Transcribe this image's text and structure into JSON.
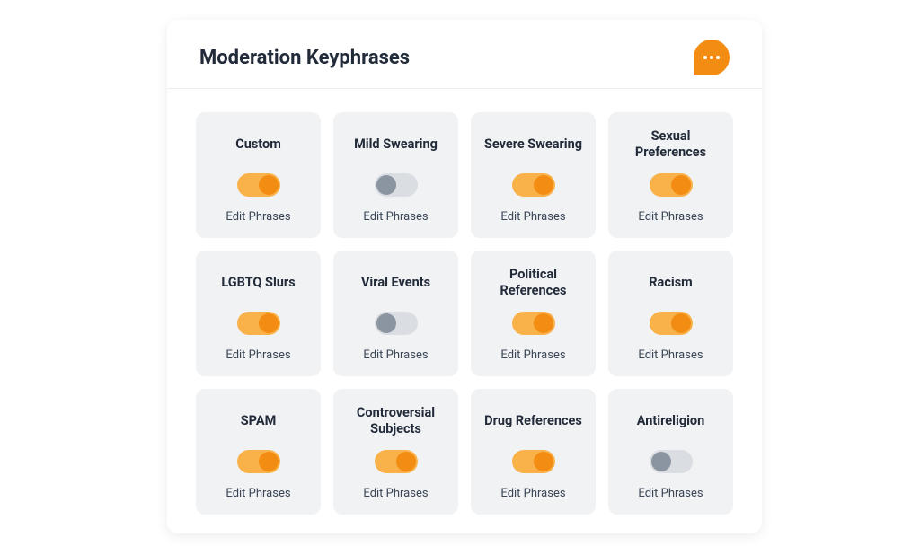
{
  "panel": {
    "title": "Moderation Keyphrases"
  },
  "colors": {
    "accent": "#f28c13",
    "accent_light": "#f9b24a",
    "card_bg": "#f1f2f4",
    "text_dark": "#222b39",
    "toggle_off_bg": "#dadde1",
    "toggle_off_knob": "#8b94a1"
  },
  "edit_label": "Edit Phrases",
  "cards": [
    {
      "title": "Custom",
      "on": true
    },
    {
      "title": "Mild Swearing",
      "on": false
    },
    {
      "title": "Severe Swearing",
      "on": true
    },
    {
      "title": "Sexual Preferences",
      "on": true
    },
    {
      "title": "LGBTQ Slurs",
      "on": true
    },
    {
      "title": "Viral Events",
      "on": false
    },
    {
      "title": "Political References",
      "on": true
    },
    {
      "title": "Racism",
      "on": true
    },
    {
      "title": "SPAM",
      "on": true
    },
    {
      "title": "Controversial Subjects",
      "on": true
    },
    {
      "title": "Drug References",
      "on": true
    },
    {
      "title": "Antireligion",
      "on": false
    }
  ]
}
